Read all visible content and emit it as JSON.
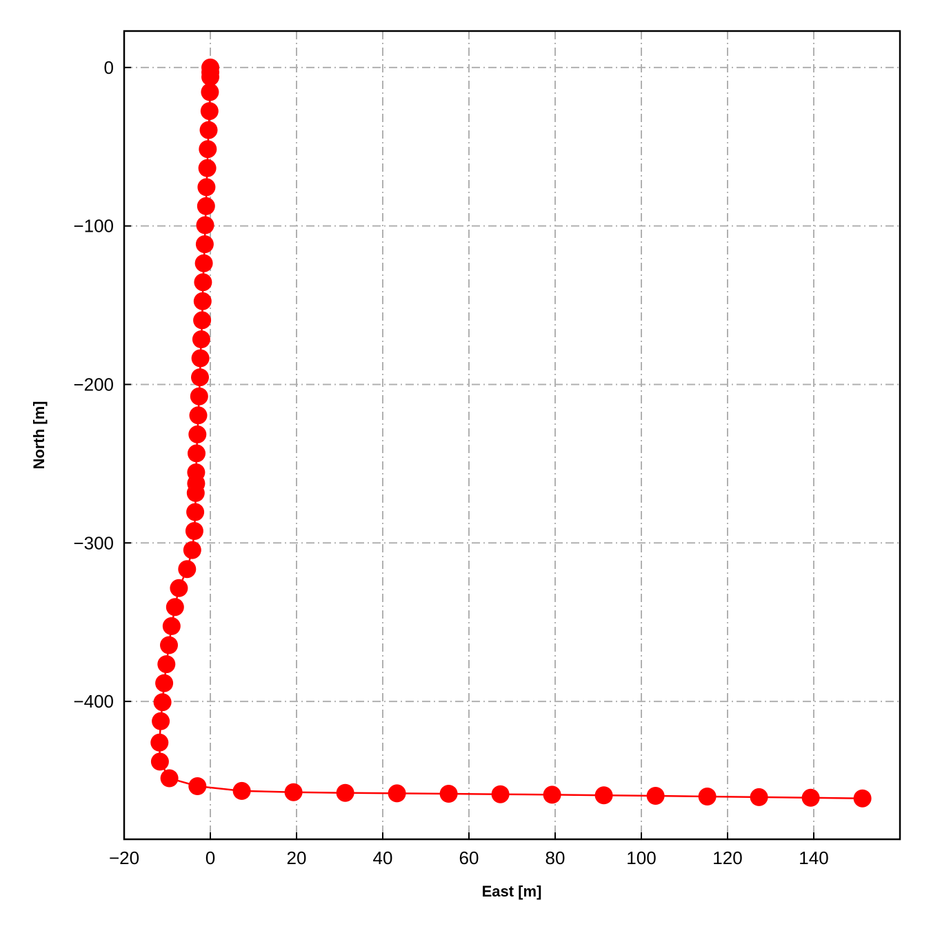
{
  "chart_data": {
    "type": "line",
    "xlabel": "East [m]",
    "ylabel": "North [m]",
    "xlim": [
      -20,
      160
    ],
    "ylim": [
      -487,
      23
    ],
    "xticks": [
      -20,
      0,
      20,
      40,
      60,
      80,
      100,
      120,
      140
    ],
    "yticks": [
      0,
      -100,
      -200,
      -300,
      -400
    ],
    "xtick_labels": [
      "−20",
      "0",
      "20",
      "40",
      "60",
      "80",
      "100",
      "120",
      "140"
    ],
    "ytick_labels": [
      "0",
      "−100",
      "−200",
      "−300",
      "−400"
    ],
    "grid": true,
    "colors": {
      "series": "#ff0000",
      "grid": "#b0b0b0",
      "axes": "#000000"
    },
    "series": [
      {
        "marker": "circle",
        "points": [
          {
            "x": 0.0,
            "y": 0.0
          },
          {
            "x": 0.0,
            "y": -3.0
          },
          {
            "x": 0.0,
            "y": -6.0
          },
          {
            "x": -0.1,
            "y": -15.5
          },
          {
            "x": -0.2,
            "y": -27.5
          },
          {
            "x": -0.4,
            "y": -39.5
          },
          {
            "x": -0.6,
            "y": -51.5
          },
          {
            "x": -0.7,
            "y": -63.5
          },
          {
            "x": -0.9,
            "y": -75.5
          },
          {
            "x": -1.0,
            "y": -87.5
          },
          {
            "x": -1.2,
            "y": -99.5
          },
          {
            "x": -1.3,
            "y": -111.5
          },
          {
            "x": -1.5,
            "y": -123.5
          },
          {
            "x": -1.7,
            "y": -135.5
          },
          {
            "x": -1.8,
            "y": -147.5
          },
          {
            "x": -1.9,
            "y": -159.5
          },
          {
            "x": -2.1,
            "y": -171.5
          },
          {
            "x": -2.3,
            "y": -183.5
          },
          {
            "x": -2.4,
            "y": -195.5
          },
          {
            "x": -2.6,
            "y": -207.5
          },
          {
            "x": -2.8,
            "y": -219.5
          },
          {
            "x": -3.0,
            "y": -231.5
          },
          {
            "x": -3.2,
            "y": -243.5
          },
          {
            "x": -3.3,
            "y": -255.5
          },
          {
            "x": -3.3,
            "y": -262.5
          },
          {
            "x": -3.4,
            "y": -268.5
          },
          {
            "x": -3.5,
            "y": -280.5
          },
          {
            "x": -3.7,
            "y": -292.5
          },
          {
            "x": -4.2,
            "y": -304.5
          },
          {
            "x": -5.4,
            "y": -316.5
          },
          {
            "x": -7.3,
            "y": -328.5
          },
          {
            "x": -8.2,
            "y": -340.5
          },
          {
            "x": -9.0,
            "y": -352.5
          },
          {
            "x": -9.6,
            "y": -364.5
          },
          {
            "x": -10.2,
            "y": -376.5
          },
          {
            "x": -10.7,
            "y": -388.5
          },
          {
            "x": -11.1,
            "y": -400.5
          },
          {
            "x": -11.5,
            "y": -412.5
          },
          {
            "x": -11.8,
            "y": -426.0
          },
          {
            "x": -11.7,
            "y": -438.0
          },
          {
            "x": -9.5,
            "y": -448.5
          },
          {
            "x": -3.0,
            "y": -453.5
          },
          {
            "x": 7.3,
            "y": -456.5
          },
          {
            "x": 19.3,
            "y": -457.3
          },
          {
            "x": 31.3,
            "y": -457.7
          },
          {
            "x": 43.3,
            "y": -458.0
          },
          {
            "x": 55.3,
            "y": -458.3
          },
          {
            "x": 67.3,
            "y": -458.6
          },
          {
            "x": 79.3,
            "y": -458.9
          },
          {
            "x": 91.3,
            "y": -459.3
          },
          {
            "x": 103.3,
            "y": -459.6
          },
          {
            "x": 115.3,
            "y": -460.0
          },
          {
            "x": 127.3,
            "y": -460.4
          },
          {
            "x": 139.3,
            "y": -460.8
          },
          {
            "x": 151.3,
            "y": -461.2
          }
        ]
      }
    ]
  }
}
